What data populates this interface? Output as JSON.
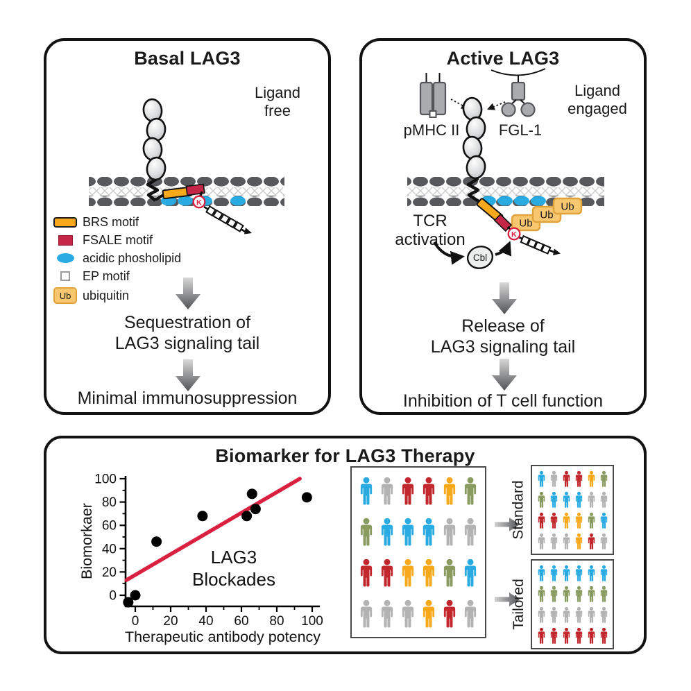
{
  "glyphs": {
    "ub": "Ub",
    "k": "K",
    "cbl": "Cbl"
  },
  "colors": {
    "panel_border": "#121212",
    "membrane_head": "#57585b",
    "membrane_tail": "#c9c9c9",
    "brs": "#f7a81b",
    "fsale": "#c42647",
    "phospholipid": "#29abe2",
    "ep_fill": "#ffffff",
    "ub_fill": "#f9c76f",
    "ub_border": "#dfa23c",
    "k_ring": "#d9213f",
    "ligand_gray": "#a9abae",
    "person": {
      "blue": "#29abe2",
      "gray": "#b3b3b3",
      "red": "#c1272d",
      "orange": "#f7a81b",
      "olive": "#8a9b5f"
    }
  },
  "basal": {
    "title": "Basal LAG3",
    "state": [
      "Ligand",
      "free"
    ],
    "legend": [
      {
        "label": "BRS motif"
      },
      {
        "label": "FSALE motif"
      },
      {
        "label": "acidic phosholipid"
      },
      {
        "label": "EP motif"
      },
      {
        "label": "ubiquitin"
      }
    ],
    "step1": [
      "Sequestration of",
      "LAG3 signaling tail"
    ],
    "step2": "Minimal immunosuppression"
  },
  "active": {
    "title": "Active LAG3",
    "state": [
      "Ligand",
      "engaged"
    ],
    "mhc_label": "pMHC II",
    "fgl_label": "FGL-1",
    "tcr": [
      "TCR",
      "activation"
    ],
    "step1": [
      "Release of",
      "LAG3 signaling tail"
    ],
    "step2": "Inhibition of T cell function"
  },
  "biomarker": {
    "title": "Biomarker for LAG3 Therapy",
    "standard_label": "Standard",
    "tailored_label": "Tailored"
  },
  "chart_data": {
    "type": "scatter",
    "xlabel": "Therapeutic antibody potency",
    "ylabel": "Biomorkaer",
    "x_ticks": [
      0,
      20,
      40,
      60,
      80,
      100
    ],
    "y_ticks": [
      0,
      20,
      40,
      60,
      80,
      100
    ],
    "x_minor_ticks": [
      10,
      30,
      50,
      70,
      90
    ],
    "y_minor_ticks": [
      10,
      30,
      50,
      70,
      90
    ],
    "xlim": [
      -12,
      106
    ],
    "ylim": [
      -12,
      104
    ],
    "points": [
      [
        -4,
        -6
      ],
      [
        0,
        0
      ],
      [
        12,
        46
      ],
      [
        38,
        68
      ],
      [
        63,
        68
      ],
      [
        66,
        87
      ],
      [
        68,
        74
      ],
      [
        97,
        84
      ]
    ],
    "trend_line": {
      "x1": -5,
      "y1": 13,
      "x2": 93,
      "y2": 100,
      "color": "#d9213f"
    },
    "annotation": [
      "LAG3",
      "Blockades"
    ],
    "point_color": "#000000",
    "grid": false,
    "legend_position": "none"
  },
  "cohorts": {
    "population": {
      "rows": [
        [
          "blue",
          "gray",
          "red",
          "red",
          "orange",
          "olive"
        ],
        [
          "olive",
          "blue",
          "blue",
          "blue",
          "gray",
          "gray"
        ],
        [
          "red",
          "red",
          "orange",
          "orange",
          "olive",
          "blue"
        ],
        [
          "gray",
          "gray",
          "gray",
          "orange",
          "red",
          "gray"
        ]
      ]
    },
    "standard": {
      "rows": [
        [
          "blue",
          "gray",
          "red",
          "red",
          "orange",
          "olive"
        ],
        [
          "olive",
          "blue",
          "blue",
          "blue",
          "gray",
          "gray"
        ],
        [
          "red",
          "red",
          "orange",
          "orange",
          "olive",
          "blue"
        ],
        [
          "gray",
          "gray",
          "gray",
          "orange",
          "red",
          "gray"
        ]
      ]
    },
    "tailored": {
      "rows": [
        [
          "blue",
          "blue",
          "blue",
          "blue",
          "blue",
          "blue"
        ],
        [
          "olive",
          "olive",
          "olive",
          "olive",
          "olive",
          "olive"
        ],
        [
          "gray",
          "gray",
          "gray",
          "gray",
          "gray",
          "gray"
        ],
        [
          "red",
          "red",
          "red",
          "red",
          "red",
          "red"
        ]
      ]
    }
  }
}
